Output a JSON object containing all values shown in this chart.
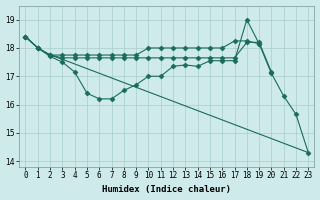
{
  "xlabel": "Humidex (Indice chaleur)",
  "background_color": "#ceeaea",
  "grid_color": "#aacccc",
  "line_color": "#1a6b5a",
  "xlim": [
    -0.5,
    23.5
  ],
  "ylim": [
    13.8,
    19.5
  ],
  "yticks": [
    14,
    15,
    16,
    17,
    18,
    19
  ],
  "xticks": [
    0,
    1,
    2,
    3,
    4,
    5,
    6,
    7,
    8,
    9,
    10,
    11,
    12,
    13,
    14,
    15,
    16,
    17,
    18,
    19,
    20,
    21,
    22,
    23
  ],
  "lines": [
    {
      "x": [
        0,
        1,
        2,
        3,
        4,
        5,
        6,
        7,
        8,
        9,
        10,
        11,
        12,
        13,
        14,
        15,
        16,
        17,
        18,
        19,
        20,
        21,
        22,
        23
      ],
      "y": [
        18.4,
        18.0,
        17.7,
        17.5,
        17.15,
        16.4,
        16.2,
        16.2,
        16.5,
        16.7,
        17.0,
        17.0,
        17.35,
        17.4,
        17.35,
        17.55,
        17.55,
        17.55,
        19.0,
        18.15,
        17.1,
        16.3,
        15.65,
        14.3
      ],
      "marker": "D",
      "markersize": 2.5,
      "linewidth": 0.8,
      "has_marker": true
    },
    {
      "x": [
        0,
        1,
        2,
        3,
        4,
        5,
        6,
        7,
        8,
        9,
        10,
        11,
        12,
        13,
        14,
        15,
        16,
        17,
        18,
        19,
        20
      ],
      "y": [
        18.4,
        18.0,
        17.75,
        17.65,
        17.65,
        17.65,
        17.65,
        17.65,
        17.65,
        17.65,
        17.65,
        17.65,
        17.65,
        17.65,
        17.65,
        17.65,
        17.65,
        17.65,
        18.2,
        18.2,
        17.15
      ],
      "marker": "D",
      "markersize": 2.5,
      "linewidth": 0.8,
      "has_marker": true
    },
    {
      "x": [
        0,
        1,
        2,
        3,
        4,
        5,
        6,
        7,
        8,
        9,
        10,
        11,
        12,
        13,
        14,
        15,
        16,
        17,
        18,
        19
      ],
      "y": [
        18.4,
        18.0,
        17.75,
        17.75,
        17.75,
        17.75,
        17.75,
        17.75,
        17.75,
        17.75,
        18.0,
        18.0,
        18.0,
        18.0,
        18.0,
        18.0,
        18.0,
        18.25,
        18.25,
        18.15
      ],
      "marker": "D",
      "markersize": 2.5,
      "linewidth": 0.8,
      "has_marker": true
    },
    {
      "x": [
        0,
        1,
        2,
        3,
        23
      ],
      "y": [
        18.4,
        18.0,
        17.75,
        17.6,
        14.3
      ],
      "marker": null,
      "markersize": 0,
      "linewidth": 0.8,
      "has_marker": false
    }
  ]
}
